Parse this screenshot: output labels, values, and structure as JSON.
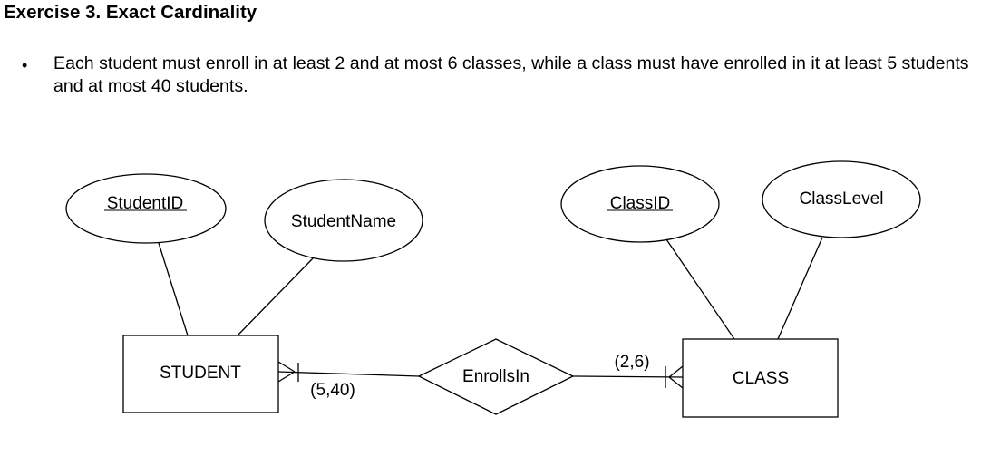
{
  "heading": "Exercise 3. Exact Cardinality",
  "bullet": "Each student must enroll in at least 2 and at most 6 classes, while a class must have enrolled in it at least 5 students and at most 40 students.",
  "entities": {
    "student": "STUDENT",
    "class": "CLASS"
  },
  "attributes": {
    "student_id": "StudentID",
    "student_name": "StudentName",
    "class_id": "ClassID",
    "class_level": "ClassLevel"
  },
  "relationship": "EnrollsIn",
  "cardinalities": {
    "student_side": "(5,40)",
    "class_side": "(2,6)"
  }
}
